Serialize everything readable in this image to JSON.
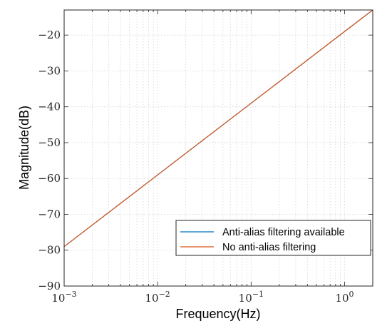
{
  "chart_data": {
    "type": "line",
    "title": "",
    "xlabel": "Frequency(Hz)",
    "ylabel": "Magnitude(dB)",
    "x_scale": "log",
    "xlim": [
      0.001,
      2
    ],
    "ylim": [
      -90,
      -13
    ],
    "grid": true,
    "legend_position": "bottom-right",
    "x_ticks": [
      {
        "base": "10",
        "exp": "−3",
        "value": 0.001
      },
      {
        "base": "10",
        "exp": "−2",
        "value": 0.01
      },
      {
        "base": "10",
        "exp": "−1",
        "value": 0.1
      },
      {
        "base": "10",
        "exp": "0",
        "value": 1
      }
    ],
    "y_ticks": [
      {
        "label": "−20",
        "value": -20
      },
      {
        "label": "−30",
        "value": -30
      },
      {
        "label": "−40",
        "value": -40
      },
      {
        "label": "−50",
        "value": -50
      },
      {
        "label": "−60",
        "value": -60
      },
      {
        "label": "−70",
        "value": -70
      },
      {
        "label": "−80",
        "value": -80
      },
      {
        "label": "−90",
        "value": -90
      }
    ],
    "series": [
      {
        "name": "Anti-alias filtering available",
        "color": "#0072BD",
        "points": [
          [
            0.001,
            -79.0
          ],
          [
            0.01,
            -59.0
          ],
          [
            0.1,
            -39.0
          ],
          [
            1,
            -19.0
          ],
          [
            2,
            -13.0
          ]
        ]
      },
      {
        "name": "No anti-alias filtering",
        "color": "#D95319",
        "points": [
          [
            0.001,
            -79.0
          ],
          [
            0.01,
            -59.0
          ],
          [
            0.1,
            -39.0
          ],
          [
            1,
            -19.0
          ],
          [
            2,
            -13.0
          ]
        ]
      }
    ]
  }
}
